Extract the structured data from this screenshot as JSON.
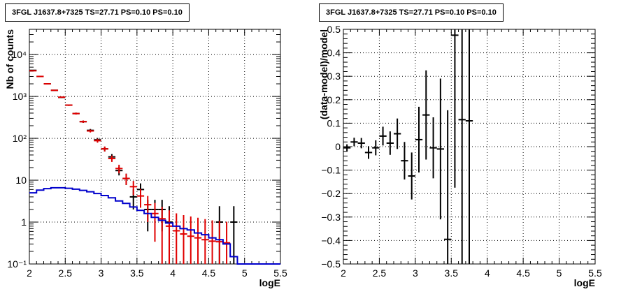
{
  "chart_data": [
    {
      "type": "scatter",
      "title": "3FGL J1637.8+7325 TS=27.71 PS=0.10 PS=0.10",
      "xlabel": "logE",
      "ylabel": "Nb of counts",
      "xlim": [
        2,
        5.5
      ],
      "ylim": [
        0.1,
        40000
      ],
      "yscale": "log",
      "grid": true,
      "x_ticks": [
        "2",
        "2.5",
        "3",
        "3.5",
        "4",
        "4.5",
        "5",
        "5.5"
      ],
      "y_ticks": [
        "10⁻¹",
        "1",
        "10",
        "10²",
        "10³",
        "10⁴"
      ],
      "series": [
        {
          "color": "#000000",
          "x": [
            2.05,
            2.15,
            2.25,
            2.35,
            2.45,
            2.55,
            2.65,
            2.75,
            2.85,
            2.95,
            3.05,
            3.15,
            3.25,
            3.35,
            3.45,
            3.55,
            3.65,
            3.75,
            3.85,
            3.95,
            4.65,
            4.85
          ],
          "values": [
            4200,
            3000,
            2000,
            1400,
            950,
            620,
            390,
            250,
            155,
            92,
            56,
            36,
            17,
            11,
            4,
            6,
            2,
            2,
            2,
            1,
            1,
            1
          ],
          "err_low": [
            65,
            55,
            45,
            37,
            31,
            25,
            20,
            16,
            12,
            10,
            7.5,
            6,
            4,
            3.3,
            2,
            2.4,
            1.4,
            1.4,
            1.4,
            0.9,
            0.9,
            0.9
          ],
          "err_high": [
            65,
            55,
            45,
            37,
            31,
            25,
            20,
            16,
            12,
            10,
            7.5,
            6,
            4,
            3.3,
            2,
            2.4,
            1.4,
            1.4,
            1.4,
            1.4,
            1.4,
            1.4
          ]
        },
        {
          "color": "#e00000",
          "x": [
            2.05,
            2.15,
            2.25,
            2.35,
            2.45,
            2.55,
            2.65,
            2.75,
            2.85,
            2.95,
            3.05,
            3.15,
            3.25,
            3.35,
            3.45,
            3.55,
            3.65,
            3.75,
            3.85,
            3.95,
            4.05,
            4.15,
            4.25,
            4.35,
            4.45,
            4.55,
            4.65,
            4.75
          ],
          "values": [
            4100,
            3000,
            2000,
            1400,
            960,
            620,
            390,
            250,
            150,
            88,
            56,
            33,
            19,
            11,
            7,
            4.2,
            2.6,
            1.6,
            1.2,
            0.8,
            0.62,
            0.52,
            0.46,
            0.42,
            0.38,
            0.35,
            0.34,
            0.32
          ],
          "err_low": [
            64,
            55,
            45,
            37,
            31,
            25,
            20,
            16,
            12,
            9.4,
            7.5,
            5.7,
            4.4,
            3.3,
            2.6,
            2,
            1.6,
            1.26,
            1.1,
            0.75,
            0.55,
            0.45,
            0.4,
            0.36,
            0.32,
            0.3,
            0.29,
            0.27
          ],
          "err_high": [
            64,
            55,
            45,
            37,
            31,
            25,
            20,
            16,
            12,
            9.4,
            7.5,
            5.7,
            4.4,
            3.3,
            2.6,
            2,
            1.6,
            1.26,
            1.1,
            1.1,
            1.0,
            0.95,
            0.9,
            0.85,
            0.8,
            0.75,
            0.72,
            0.7
          ]
        },
        {
          "color": "#0000cc",
          "type": "step",
          "edges": [
            2.0,
            2.1,
            2.2,
            2.3,
            2.4,
            2.5,
            2.6,
            2.7,
            2.8,
            2.9,
            3.0,
            3.1,
            3.2,
            3.3,
            3.4,
            3.5,
            3.6,
            3.7,
            3.8,
            3.9,
            4.0,
            4.1,
            4.2,
            4.3,
            4.4,
            4.5,
            4.6,
            4.7,
            4.8,
            4.9,
            5.0,
            5.1,
            5.2,
            5.3,
            5.4,
            5.5
          ],
          "values": [
            5,
            5.8,
            6.3,
            6.6,
            6.6,
            6.4,
            6.1,
            5.7,
            5.3,
            4.8,
            4.3,
            3.8,
            3.2,
            2.8,
            2.3,
            1.9,
            1.6,
            1.3,
            1.1,
            0.95,
            0.8,
            0.7,
            0.65,
            0.55,
            0.5,
            0.42,
            0.38,
            0.3,
            0.15,
            0.1,
            0.1,
            0.1,
            0.1,
            0.1,
            0.1
          ]
        }
      ]
    },
    {
      "type": "scatter",
      "title": "3FGL J1637.8+7325 TS=27.71 PS=0.10 PS=0.10",
      "xlabel": "logE",
      "ylabel": "(data-model)/model",
      "xlim": [
        2,
        5.5
      ],
      "ylim": [
        -0.5,
        0.5
      ],
      "grid": true,
      "x_ticks": [
        "2",
        "2.5",
        "3",
        "3.5",
        "4",
        "4.5",
        "5",
        "5.5"
      ],
      "y_ticks": [
        "−0.5",
        "−0.4",
        "−0.3",
        "−0.2",
        "−0.1",
        "0",
        "0.1",
        "0.2",
        "0.3",
        "0.4",
        "0.5"
      ],
      "series": [
        {
          "color": "#000000",
          "x": [
            2.05,
            2.15,
            2.25,
            2.35,
            2.45,
            2.55,
            2.65,
            2.75,
            2.85,
            2.95,
            3.05,
            3.15,
            3.25,
            3.35,
            3.45,
            3.55,
            3.65,
            3.75
          ],
          "values": [
            -0.005,
            0.02,
            0.015,
            -0.025,
            -0.005,
            0.045,
            0.015,
            0.055,
            -0.06,
            -0.125,
            0.03,
            0.135,
            -0.005,
            -0.01,
            -0.395,
            0.475,
            0.115,
            0.11
          ],
          "err": [
            0.015,
            0.018,
            0.022,
            0.027,
            0.032,
            0.04,
            0.05,
            0.065,
            0.08,
            0.1,
            0.14,
            0.19,
            0.13,
            0.3,
            0.55,
            0.65,
            0.9,
            1.0
          ]
        }
      ]
    }
  ]
}
